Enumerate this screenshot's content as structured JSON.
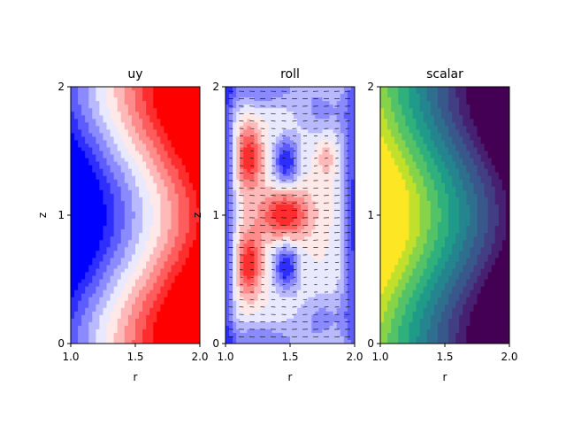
{
  "chart_data": [
    {
      "type": "heatmap",
      "title": "uy",
      "field": "uy",
      "colormap": "bwr",
      "xlabel": "r",
      "ylabel": "z",
      "xlim": [
        1.0,
        2.0
      ],
      "ylim": [
        0,
        2
      ],
      "xticks": [
        "1.0",
        "1.5",
        "2.0"
      ],
      "yticks": [
        "0",
        "1",
        "2"
      ],
      "levels": 12,
      "quiver": false
    },
    {
      "type": "heatmap",
      "title": "roll",
      "field": "roll",
      "colormap": "bwr",
      "xlabel": "r",
      "ylabel": "z",
      "xlim": [
        1.0,
        2.0
      ],
      "ylim": [
        0,
        2
      ],
      "xticks": [
        "1.0",
        "1.5",
        "2.0"
      ],
      "yticks": [
        "0",
        "1",
        "2"
      ],
      "levels": 12,
      "quiver": true
    },
    {
      "type": "heatmap",
      "title": "scalar",
      "field": "scalar",
      "colormap": "viridis",
      "xlabel": "r",
      "ylabel": "",
      "xlim": [
        1.0,
        2.0
      ],
      "ylim": [
        0,
        2
      ],
      "xticks": [
        "1.0",
        "1.5",
        "2.0"
      ],
      "yticks": [
        "0",
        "1",
        "2"
      ],
      "levels": 12,
      "quiver": false
    }
  ]
}
